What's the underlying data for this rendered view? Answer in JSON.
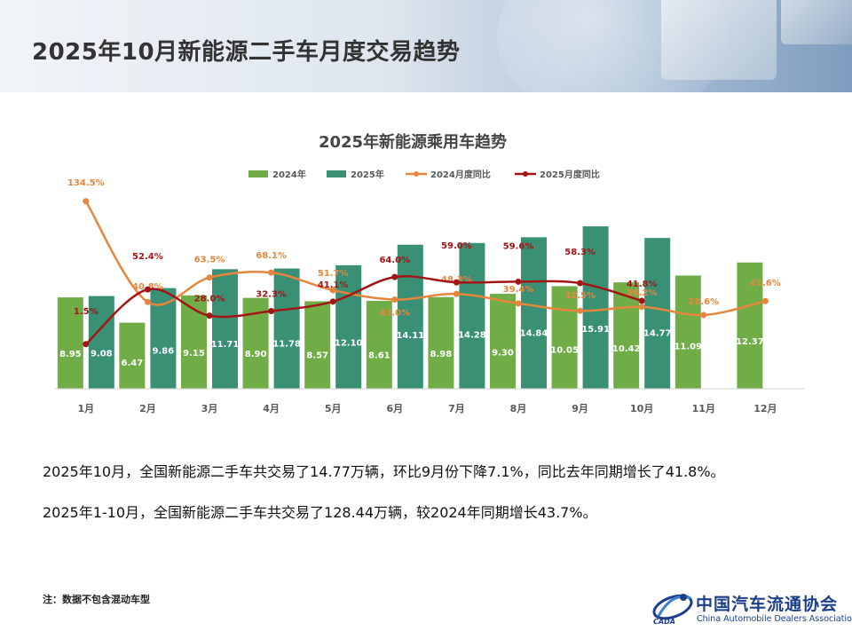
{
  "header": {
    "title": "2025年10月新能源二手车月度交易趋势"
  },
  "chart_data": {
    "type": "bar",
    "title": "2025年新能源乘用车趋势",
    "categories": [
      "1月",
      "2月",
      "3月",
      "4月",
      "5月",
      "6月",
      "7月",
      "8月",
      "9月",
      "10月",
      "11月",
      "12月"
    ],
    "ylim": [
      0,
      20
    ],
    "pct_ylim": [
      -40,
      150
    ],
    "grid": false,
    "legend_position": "top",
    "series": [
      {
        "name": "2024年",
        "kind": "bar",
        "color": "#70AD47",
        "values": [
          8.95,
          6.47,
          9.15,
          8.9,
          8.57,
          8.61,
          8.98,
          9.3,
          10.05,
          10.42,
          11.09,
          12.37
        ],
        "labels": [
          "8.95",
          "6.47",
          "9.15",
          "8.90",
          "8.57",
          "8.61",
          "8.98",
          "9.30",
          "10.05",
          "10.42",
          "11.09",
          "12.37"
        ]
      },
      {
        "name": "2025年",
        "kind": "bar",
        "color": "#3A9074",
        "values": [
          9.08,
          9.86,
          11.71,
          11.78,
          12.1,
          14.11,
          14.28,
          14.84,
          15.91,
          14.77,
          null,
          null
        ],
        "labels": [
          "9.08",
          "9.86",
          "11.71",
          "11.78",
          "12.10",
          "14.11",
          "14.28",
          "14.84",
          "15.91",
          "14.77",
          "",
          ""
        ]
      },
      {
        "name": "2024月度同比",
        "kind": "line",
        "color": "#E8853D",
        "values": [
          134.5,
          40.8,
          63.5,
          68.1,
          51.7,
          43.0,
          48.3,
          39.4,
          32.5,
          36.2,
          28.6,
          41.6
        ],
        "labels": [
          "134.5%",
          "40.8%",
          "63.5%",
          "68.1%",
          "51.7%",
          "43.0%",
          "48.3%",
          "39.4%",
          "32.5%",
          "36.2%",
          "28.6%",
          "41.6%"
        ]
      },
      {
        "name": "2025月度同比",
        "kind": "line",
        "color": "#A31515",
        "values": [
          1.5,
          52.4,
          28.0,
          32.3,
          41.1,
          64.0,
          59.0,
          59.6,
          58.3,
          41.8,
          null,
          null
        ],
        "labels": [
          "1.5%",
          "52.4%",
          "28.0%",
          "32.3%",
          "41.1%",
          "64.0%",
          "59.0%",
          "59.6%",
          "58.3%",
          "41.8%",
          "",
          ""
        ]
      }
    ]
  },
  "summary": {
    "line1": "2025年10月，全国新能源二手车共交易了14.77万辆，环比9月份下降7.1%，同比去年同期增长了41.8%。",
    "line2": "2025年1-10月，全国新能源二手车共交易了128.44万辆，较2024年同期增长43.7%。"
  },
  "footnote": "注：数据不包含混动车型",
  "logo": {
    "name": "中国汽车流通协会",
    "english": "China Automobile Dealers Association",
    "abbr": "CADA"
  },
  "colors": {
    "bar2024": "#70AD47",
    "bar2025": "#3A9074",
    "line2024": "#E8853D",
    "line2025": "#A31515"
  }
}
